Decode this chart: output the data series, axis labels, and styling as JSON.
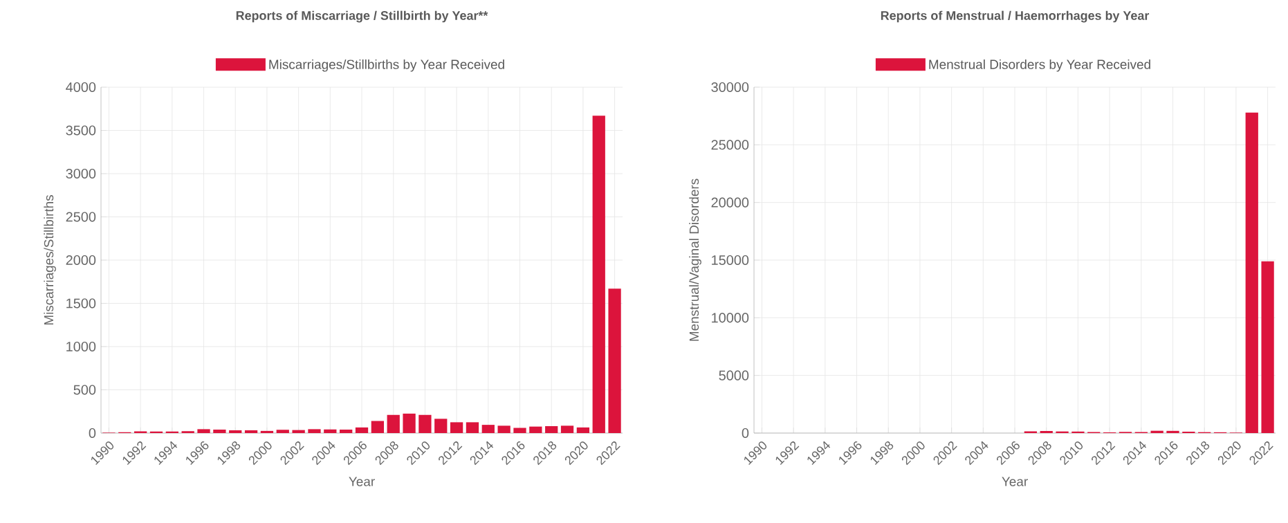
{
  "chart_data": [
    {
      "type": "bar",
      "title": "Reports of Miscarriage / Stillbirth by Year**",
      "xlabel": "Year",
      "ylabel": "Miscarriages/Stillbirths",
      "categories": [
        "1990",
        null,
        "1992",
        null,
        "1994",
        null,
        "1996",
        null,
        "1998",
        null,
        "2000",
        null,
        "2002",
        null,
        "2004",
        null,
        "2006",
        null,
        "2008",
        null,
        "2010",
        null,
        "2012",
        null,
        "2014",
        null,
        "2016",
        null,
        "2018",
        null,
        "2020",
        null,
        "2022"
      ],
      "series": [
        {
          "name": "Miscarriages/Stillbirths by Year Received",
          "color": "#dc143c",
          "values": [
            5,
            10,
            20,
            18,
            18,
            22,
            45,
            40,
            32,
            32,
            25,
            38,
            35,
            45,
            42,
            40,
            65,
            140,
            210,
            225,
            210,
            165,
            125,
            125,
            95,
            85,
            60,
            75,
            80,
            85,
            65,
            3670,
            1670
          ]
        }
      ],
      "ylim": [
        0,
        4000
      ],
      "yticks": [
        0,
        500,
        1000,
        1500,
        2000,
        2500,
        3000,
        3500,
        4000
      ],
      "grid": true,
      "legend": "top"
    },
    {
      "type": "bar",
      "title": "Reports of Menstrual / Haemorrhages by Year",
      "xlabel": "Year",
      "ylabel": "Menstrual/Vaginal Disorders",
      "categories": [
        "1990",
        null,
        "1992",
        null,
        "1994",
        null,
        "1996",
        null,
        "1998",
        null,
        "2000",
        null,
        "2002",
        null,
        "2004",
        null,
        "2006",
        null,
        "2008",
        null,
        "2010",
        null,
        "2012",
        null,
        "2014",
        null,
        "2016",
        null,
        "2018",
        null,
        "2020",
        null,
        "2022"
      ],
      "series": [
        {
          "name": "Menstrual Disorders by Year Received",
          "color": "#dc143c",
          "values": [
            0,
            0,
            0,
            0,
            0,
            0,
            0,
            0,
            0,
            0,
            0,
            0,
            0,
            0,
            0,
            0,
            null,
            150,
            180,
            140,
            130,
            90,
            60,
            100,
            90,
            200,
            190,
            120,
            80,
            70,
            40,
            27800,
            14900
          ]
        }
      ],
      "ylim": [
        0,
        30000
      ],
      "yticks": [
        0,
        5000,
        10000,
        15000,
        20000,
        25000,
        30000
      ],
      "grid": true,
      "legend": "top"
    }
  ]
}
